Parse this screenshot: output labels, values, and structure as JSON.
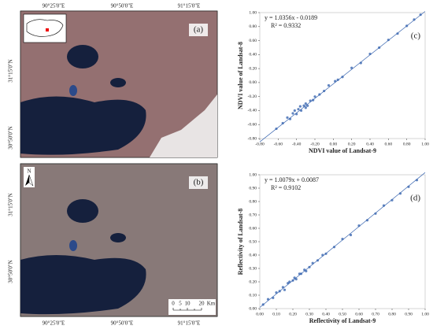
{
  "maps": [
    {
      "label": "(a)",
      "lon_labels": [
        "90°25'0\"E",
        "90°50'0\"E",
        "91°15'0\"E"
      ],
      "lat_labels": [
        "31°15'0\"N",
        "30°50'0\"N"
      ]
    },
    {
      "label": "(b)",
      "north": "N",
      "lon_labels": [
        "90°25'0\"E",
        "90°50'0\"E",
        "91°15'0\"E"
      ],
      "lat_labels": [
        "31°15'0\"N",
        "30°50'0\"N"
      ],
      "scale_labels": [
        "0",
        "5",
        "10",
        "20"
      ],
      "scale_unit": "Km"
    }
  ],
  "chart_data": [
    {
      "type": "scatter",
      "panel": "(c)",
      "x_label": "NDVI value of Landsat-9",
      "y_label": "NDVI value of Landsat-8",
      "equation": "y = 1.0356x - 0.0189",
      "r_squared": "R² = 0.9332",
      "trend_line": {
        "slope": 1.0356,
        "intercept": -0.0189
      },
      "color": "#3a66b0",
      "x": [
        -0.62,
        -0.55,
        -0.5,
        -0.47,
        -0.44,
        -0.4,
        -0.38,
        -0.35,
        -0.32,
        -0.3,
        -0.28,
        -0.25,
        -0.22,
        -0.2,
        -0.15,
        -0.1,
        -0.05,
        0.02,
        0.05,
        0.1,
        0.2,
        0.3,
        0.4,
        0.5,
        0.6,
        0.7,
        0.8,
        0.88,
        0.95,
        -0.42,
        -0.36,
        -0.3
      ],
      "y": [
        -0.66,
        -0.58,
        -0.5,
        -0.52,
        -0.44,
        -0.45,
        -0.38,
        -0.4,
        -0.33,
        -0.3,
        -0.33,
        -0.26,
        -0.25,
        -0.2,
        -0.17,
        -0.12,
        -0.04,
        0.02,
        0.04,
        0.08,
        0.21,
        0.28,
        0.41,
        0.5,
        0.61,
        0.7,
        0.81,
        0.9,
        0.97,
        -0.4,
        -0.34,
        -0.36
      ],
      "xlim": [
        -0.8,
        1.0
      ],
      "ylim": [
        -0.8,
        1.0
      ],
      "xticks": [
        {
          "value": -0.8,
          "label": "-0.80"
        },
        {
          "value": -0.6,
          "label": "-0.60"
        },
        {
          "value": -0.4,
          "label": "-0.40"
        },
        {
          "value": -0.2,
          "label": "-0.20"
        },
        {
          "value": 0,
          "label": "0.00"
        },
        {
          "value": 0.2,
          "label": "0.20"
        },
        {
          "value": 0.4,
          "label": "0.40"
        },
        {
          "value": 0.6,
          "label": "0.60"
        },
        {
          "value": 0.8,
          "label": "0.80"
        },
        {
          "value": 1.0,
          "label": "1.00"
        }
      ],
      "yticks": [
        {
          "value": -0.8,
          "label": "-0.80"
        },
        {
          "value": -0.6,
          "label": "-0.60"
        },
        {
          "value": -0.4,
          "label": "-0.40"
        },
        {
          "value": -0.2,
          "label": "-0.20"
        },
        {
          "value": 0,
          "label": "0.00"
        },
        {
          "value": 0.2,
          "label": "0.20"
        },
        {
          "value": 0.4,
          "label": "0.40"
        },
        {
          "value": 0.6,
          "label": "0.60"
        },
        {
          "value": 0.8,
          "label": "0.80"
        },
        {
          "value": 1.0,
          "label": "1.00"
        }
      ]
    },
    {
      "type": "scatter",
      "panel": "(d)",
      "x_label": "Reflectivity of Landsat-9",
      "y_label": "Reflectivity of Landsat-8",
      "equation": "y = 1.0079x + 0.0087",
      "r_squared": "R² = 0.9102",
      "trend_line": {
        "slope": 1.0079,
        "intercept": 0.0087
      },
      "color": "#3a66b0",
      "x": [
        0.02,
        0.05,
        0.08,
        0.1,
        0.12,
        0.14,
        0.15,
        0.17,
        0.18,
        0.2,
        0.21,
        0.22,
        0.24,
        0.25,
        0.27,
        0.28,
        0.3,
        0.32,
        0.35,
        0.38,
        0.4,
        0.45,
        0.5,
        0.55,
        0.6,
        0.65,
        0.7,
        0.75,
        0.8,
        0.85,
        0.9,
        0.95
      ],
      "y": [
        0.03,
        0.07,
        0.08,
        0.12,
        0.13,
        0.16,
        0.14,
        0.19,
        0.2,
        0.21,
        0.23,
        0.22,
        0.26,
        0.26,
        0.29,
        0.28,
        0.31,
        0.34,
        0.36,
        0.4,
        0.41,
        0.46,
        0.52,
        0.55,
        0.62,
        0.66,
        0.71,
        0.77,
        0.81,
        0.86,
        0.91,
        0.96
      ],
      "xlim": [
        0,
        1.0
      ],
      "ylim": [
        0,
        1.0
      ],
      "xticks": [
        {
          "value": 0,
          "label": "0.00"
        },
        {
          "value": 0.1,
          "label": "0.10"
        },
        {
          "value": 0.2,
          "label": "0.20"
        },
        {
          "value": 0.3,
          "label": "0.30"
        },
        {
          "value": 0.4,
          "label": "0.40"
        },
        {
          "value": 0.5,
          "label": "0.50"
        },
        {
          "value": 0.6,
          "label": "0.60"
        },
        {
          "value": 0.7,
          "label": "0.70"
        },
        {
          "value": 0.8,
          "label": "0.80"
        },
        {
          "value": 0.9,
          "label": "0.90"
        },
        {
          "value": 1.0,
          "label": "1.00"
        }
      ],
      "yticks": [
        {
          "value": 0,
          "label": "0.00"
        },
        {
          "value": 0.1,
          "label": "0.10"
        },
        {
          "value": 0.2,
          "label": "0.20"
        },
        {
          "value": 0.3,
          "label": "0.30"
        },
        {
          "value": 0.4,
          "label": "0.40"
        },
        {
          "value": 0.5,
          "label": "0.50"
        },
        {
          "value": 0.6,
          "label": "0.60"
        },
        {
          "value": 0.7,
          "label": "0.70"
        },
        {
          "value": 0.8,
          "label": "0.80"
        },
        {
          "value": 0.9,
          "label": "0.90"
        },
        {
          "value": 1.0,
          "label": "1.00"
        }
      ]
    }
  ]
}
